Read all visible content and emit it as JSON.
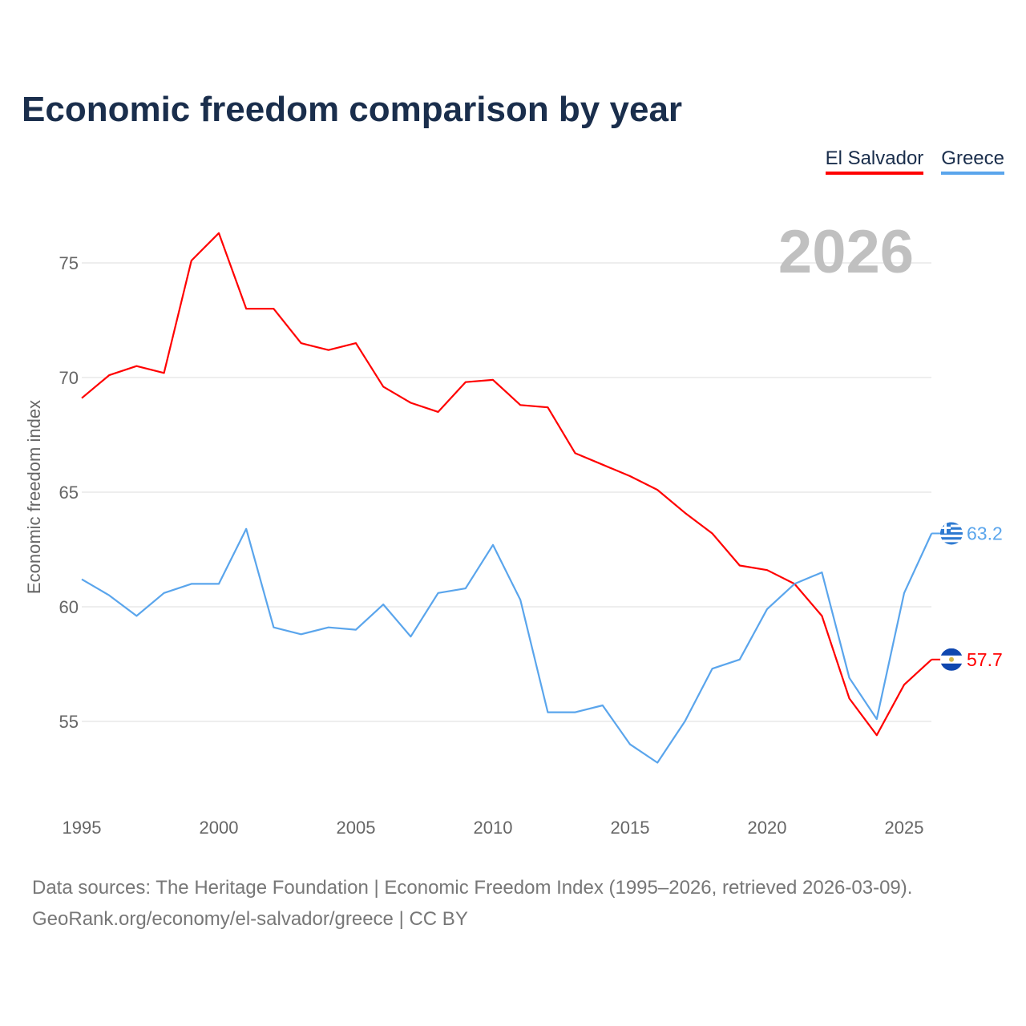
{
  "title": "Economic freedom comparison by year",
  "footer": {
    "line1": "Data sources: The Heritage Foundation | Economic Freedom Index (1995–2026, retrieved 2026-03-09).",
    "line2": "GeoRank.org/economy/el-salvador/greece | CC BY"
  },
  "chart_data": {
    "type": "line",
    "title": "Economic freedom comparison by year",
    "xlabel": "",
    "ylabel": "Economic freedom index",
    "year_label": "2026",
    "x": [
      1995,
      1996,
      1997,
      1998,
      1999,
      2000,
      2001,
      2002,
      2003,
      2004,
      2005,
      2006,
      2007,
      2008,
      2009,
      2010,
      2011,
      2012,
      2013,
      2014,
      2015,
      2016,
      2017,
      2018,
      2019,
      2020,
      2021,
      2022,
      2023,
      2024,
      2025,
      2026
    ],
    "xlim": [
      1995,
      2026
    ],
    "ylim": [
      51.5,
      77.5
    ],
    "xticks": [
      "1995",
      "2000",
      "2005",
      "2010",
      "2015",
      "2020",
      "2025"
    ],
    "yticks": [
      "55",
      "60",
      "65",
      "70",
      "75"
    ],
    "grid": true,
    "legend_position": "top-right",
    "series": [
      {
        "name": "El Salvador",
        "color": "#ff0000",
        "end_label": "57.7",
        "values": [
          69.1,
          70.1,
          70.5,
          70.2,
          75.1,
          76.3,
          73.0,
          73.0,
          71.5,
          71.2,
          71.5,
          69.6,
          68.9,
          68.5,
          69.8,
          69.9,
          68.8,
          68.7,
          66.7,
          66.2,
          65.7,
          65.1,
          64.1,
          63.2,
          61.8,
          61.6,
          61.0,
          59.6,
          56.0,
          54.4,
          56.6,
          57.7
        ]
      },
      {
        "name": "Greece",
        "color": "#5aa5ec",
        "end_label": "63.2",
        "values": [
          61.2,
          60.5,
          59.6,
          60.6,
          61.0,
          61.0,
          63.4,
          59.1,
          58.8,
          59.1,
          59.0,
          60.1,
          58.7,
          60.6,
          60.8,
          62.7,
          60.3,
          55.4,
          55.4,
          55.7,
          54.0,
          53.2,
          55.0,
          57.3,
          57.7,
          59.9,
          61.0,
          61.5,
          56.9,
          55.1,
          60.6,
          63.2
        ]
      }
    ]
  }
}
